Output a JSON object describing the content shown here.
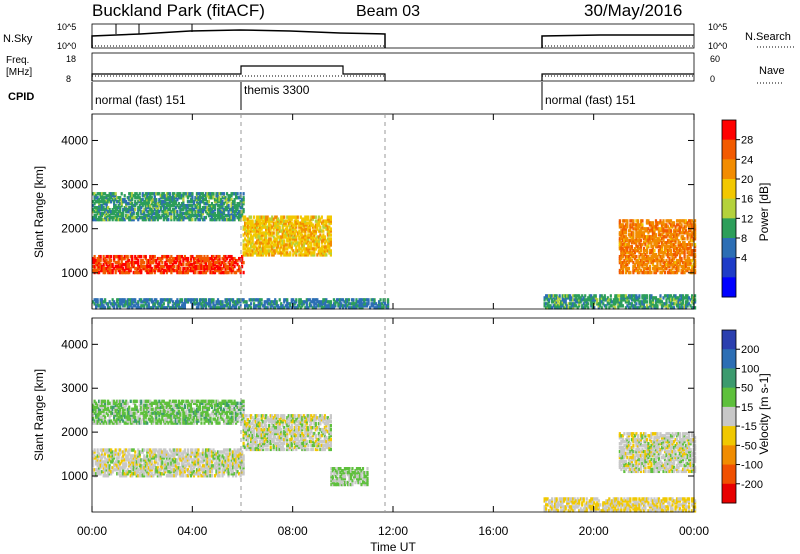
{
  "header": {
    "site": "Buckland Park (fitACF)",
    "beam": "Beam 03",
    "date": "30/May/2016"
  },
  "left_labels": {
    "nsky": "N.Sky",
    "freq_line1": "Freq.",
    "freq_line2": "[MHz]",
    "cpid": "CPID"
  },
  "right_labels": {
    "nsearch": "N.Search",
    "nave": "Nave"
  },
  "small_axes": {
    "nsky_ticks": [
      "10^5",
      "10^0"
    ],
    "freq_ticks": [
      "18",
      "8"
    ],
    "nave_ticks": [
      "60",
      "0"
    ],
    "nsearch_ticks": [
      "10^5",
      "10^0"
    ]
  },
  "cpid_labels": [
    {
      "text": "normal (fast) 151",
      "start_hour": 0
    },
    {
      "text": "themis 3300",
      "start_hour": 6
    },
    {
      "text": "normal (fast) 151",
      "start_hour": 18
    }
  ],
  "x_axis": {
    "title": "Time UT",
    "ticks": [
      "00:00",
      "04:00",
      "08:00",
      "12:00",
      "16:00",
      "20:00",
      "00:00"
    ]
  },
  "panels": {
    "power": {
      "ylabel": "Slant Range [km]",
      "colorbar_title": "Power [dB]",
      "colorbar_ticks": [
        "28",
        "24",
        "20",
        "16",
        "12",
        "8",
        "4"
      ],
      "colors": [
        "#ff0000",
        "#f25a00",
        "#f28c00",
        "#f2c800",
        "#b4d23c",
        "#2c9e5a",
        "#2c6eb4",
        "#1e3cc8",
        "#0000ff"
      ]
    },
    "velocity": {
      "ylabel": "Slant Range [km]",
      "colorbar_title": "Velocity [m s-1]",
      "colorbar_ticks": [
        "200",
        "100",
        "50",
        "15",
        "-15",
        "-50",
        "-100",
        "-200"
      ],
      "colors": [
        "#2b3faf",
        "#2c6eb4",
        "#3c9a6e",
        "#5ec03c",
        "#c8c8c8",
        "#f0c800",
        "#f08c00",
        "#f05000",
        "#e80000"
      ]
    },
    "y_ticks": [
      "4000",
      "3000",
      "2000",
      "1000"
    ]
  },
  "chart_data": [
    {
      "type": "heatmap",
      "title": "Power [dB]",
      "xlabel": "Time UT",
      "ylabel": "Slant Range [km]",
      "xlim": [
        0,
        24
      ],
      "ylim": [
        180,
        4600
      ],
      "colorbar_range": [
        0,
        32
      ],
      "data_gaps_hours": [
        [
          11.8,
          18.0
        ]
      ],
      "echo_bands": [
        {
          "hours": [
            0,
            6
          ],
          "range_km": [
            1000,
            1400
          ],
          "power_db": 28
        },
        {
          "hours": [
            0,
            6
          ],
          "range_km": [
            2200,
            2800
          ],
          "power_db": 12
        },
        {
          "hours": [
            6,
            9.5
          ],
          "range_km": [
            1400,
            2300
          ],
          "power_db": 20
        },
        {
          "hours": [
            0,
            11.8
          ],
          "range_km": [
            200,
            400
          ],
          "power_db": 10
        },
        {
          "hours": [
            21,
            24
          ],
          "range_km": [
            1000,
            2200
          ],
          "power_db": 24
        },
        {
          "hours": [
            18,
            24
          ],
          "range_km": [
            200,
            500
          ],
          "power_db": 12
        }
      ]
    },
    {
      "type": "heatmap",
      "title": "Velocity [m s-1]",
      "xlabel": "Time UT",
      "ylabel": "Slant Range [km]",
      "xlim": [
        0,
        24
      ],
      "ylim": [
        180,
        4600
      ],
      "colorbar_range": [
        -250,
        250
      ],
      "data_gaps_hours": [
        [
          11.8,
          18.0
        ]
      ],
      "echo_bands": [
        {
          "hours": [
            0,
            6
          ],
          "range_km": [
            1000,
            1600
          ],
          "velocity_ms": 0
        },
        {
          "hours": [
            0,
            6
          ],
          "range_km": [
            2200,
            2700
          ],
          "velocity_ms": 50
        },
        {
          "hours": [
            6,
            9.5
          ],
          "range_km": [
            1600,
            2400
          ],
          "velocity_ms": 0
        },
        {
          "hours": [
            9.5,
            11
          ],
          "range_km": [
            800,
            1200
          ],
          "velocity_ms": 30
        },
        {
          "hours": [
            21,
            24
          ],
          "range_km": [
            1100,
            2000
          ],
          "velocity_ms": 0
        },
        {
          "hours": [
            18,
            24
          ],
          "range_km": [
            200,
            500
          ],
          "velocity_ms": -30
        }
      ]
    }
  ]
}
